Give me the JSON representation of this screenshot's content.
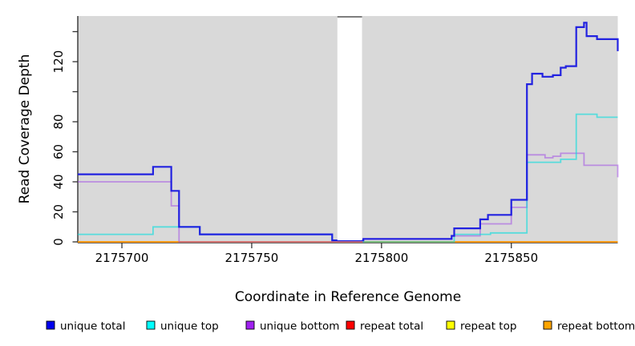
{
  "figure": {
    "plot_bg_color": "#d9d9d9",
    "background_color": "#ffffff",
    "axis_color": "#333333"
  },
  "chart_data": {
    "type": "line",
    "subtype": "step",
    "title": "",
    "xlabel": "Coordinate in Reference Genome",
    "ylabel": "Read Coverage Depth",
    "x_range": [
      2175683,
      2175891
    ],
    "y_range": [
      0,
      150
    ],
    "grid": false,
    "x_ticks": [
      2175700,
      2175750,
      2175800,
      2175850
    ],
    "x_tick_labels": [
      "2175700",
      "2175750",
      "2175800",
      "2175850"
    ],
    "y_ticks": [
      {
        "value": 0,
        "label": "0"
      },
      {
        "value": 20,
        "label": "20"
      },
      {
        "value": 40,
        "label": "40"
      },
      {
        "value": 60,
        "label": "60"
      },
      {
        "value": 80,
        "label": "80"
      },
      {
        "value": 100,
        "label": ""
      },
      {
        "value": 120,
        "label": "120"
      },
      {
        "value": 140,
        "label": ""
      }
    ],
    "gap_region": {
      "x_start": 2175783,
      "x_end": 2175792.5,
      "fill": "#ffffff",
      "top_cap_color": "#7d7d7d"
    },
    "draw_order": [
      "repeat total",
      "repeat top",
      "repeat bottom",
      "unique bottom",
      "unique top",
      "unique total"
    ],
    "series": [
      {
        "name": "unique total",
        "legend_color": "#0000ee",
        "line_color": "#1818e0",
        "line_opacity": 0.95,
        "line_width": 2.2,
        "points": [
          [
            2175683,
            45
          ],
          [
            2175712,
            50
          ],
          [
            2175719,
            34
          ],
          [
            2175722,
            10
          ],
          [
            2175730,
            5
          ],
          [
            2175781,
            1
          ],
          [
            2175793,
            2
          ],
          [
            2175827,
            4
          ],
          [
            2175828,
            9
          ],
          [
            2175838,
            15
          ],
          [
            2175841,
            18
          ],
          [
            2175850,
            28
          ],
          [
            2175856,
            105
          ],
          [
            2175858,
            112
          ],
          [
            2175862,
            110
          ],
          [
            2175866,
            111
          ],
          [
            2175869,
            116
          ],
          [
            2175871,
            117
          ],
          [
            2175875,
            143
          ],
          [
            2175878,
            146
          ],
          [
            2175879,
            137
          ],
          [
            2175883,
            135
          ],
          [
            2175891,
            127
          ]
        ]
      },
      {
        "name": "unique top",
        "legend_color": "#00ffff",
        "line_color": "#00dede",
        "line_opacity": 0.6,
        "line_width": 1.8,
        "points": [
          [
            2175683,
            5
          ],
          [
            2175712,
            10
          ],
          [
            2175730,
            5
          ],
          [
            2175781,
            1
          ],
          [
            2175793,
            0
          ],
          [
            2175828,
            5
          ],
          [
            2175842,
            6
          ],
          [
            2175856,
            53
          ],
          [
            2175869,
            55
          ],
          [
            2175875,
            85
          ],
          [
            2175883,
            83
          ],
          [
            2175891,
            83
          ]
        ]
      },
      {
        "name": "unique bottom",
        "legend_color": "#a020f0",
        "line_color": "#9b3fe8",
        "line_opacity": 0.5,
        "line_width": 1.8,
        "points": [
          [
            2175683,
            40
          ],
          [
            2175719,
            24
          ],
          [
            2175722,
            0
          ],
          [
            2175793,
            2
          ],
          [
            2175827,
            4
          ],
          [
            2175838,
            12
          ],
          [
            2175850,
            23
          ],
          [
            2175856,
            58
          ],
          [
            2175863,
            56
          ],
          [
            2175866,
            57
          ],
          [
            2175869,
            59
          ],
          [
            2175878,
            51
          ],
          [
            2175891,
            43
          ]
        ]
      },
      {
        "name": "repeat total",
        "legend_color": "#ff0000",
        "line_color": "#e02020",
        "line_opacity": 0.9,
        "line_width": 1.6,
        "points": [
          [
            2175683,
            0
          ],
          [
            2175891,
            0
          ]
        ]
      },
      {
        "name": "repeat top",
        "legend_color": "#ffff00",
        "line_color": "#ffff00",
        "line_opacity": 0.9,
        "line_width": 1.6,
        "points": [
          [
            2175683,
            0
          ],
          [
            2175891,
            0
          ]
        ]
      },
      {
        "name": "repeat bottom",
        "legend_color": "#ffa500",
        "line_color": "#ff9812",
        "line_opacity": 1,
        "line_width": 2,
        "points": [
          [
            2175683,
            0
          ],
          [
            2175891,
            0
          ]
        ]
      }
    ],
    "legend": {
      "position": "bottom",
      "items": [
        {
          "label": "unique total",
          "color": "#0000ee"
        },
        {
          "label": "unique top",
          "color": "#00ffff"
        },
        {
          "label": "unique bottom",
          "color": "#a020f0"
        },
        {
          "label": "repeat total",
          "color": "#ff0000"
        },
        {
          "label": "repeat top",
          "color": "#ffff00"
        },
        {
          "label": "repeat bottom",
          "color": "#ffa500"
        }
      ]
    }
  }
}
